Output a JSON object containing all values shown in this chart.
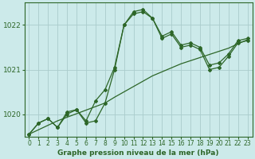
{
  "title": "Graphe pression niveau de la mer (hPa)",
  "background_color": "#cceaea",
  "grid_color": "#aacccc",
  "line_color": "#2d6628",
  "x": [
    0,
    1,
    2,
    3,
    4,
    5,
    6,
    7,
    8,
    9,
    10,
    11,
    12,
    13,
    14,
    15,
    16,
    17,
    18,
    19,
    20,
    21,
    22,
    23
  ],
  "y_line1": [
    1019.55,
    1019.8,
    1019.9,
    1019.7,
    1020.0,
    1020.1,
    1019.8,
    1019.85,
    1020.25,
    1021.0,
    1022.0,
    1022.25,
    1022.3,
    1022.15,
    1021.75,
    1021.85,
    1021.55,
    1021.6,
    1021.5,
    1021.1,
    1021.15,
    1021.35,
    1021.65,
    1021.7
  ],
  "y_line2": [
    1019.55,
    1019.8,
    1019.9,
    1019.7,
    1020.05,
    1020.1,
    1019.85,
    1020.3,
    1020.55,
    1021.05,
    1022.0,
    1022.3,
    1022.35,
    1022.15,
    1021.7,
    1021.8,
    1021.5,
    1021.55,
    1021.45,
    1021.0,
    1021.05,
    1021.3,
    1021.6,
    1021.65
  ],
  "y_trend": [
    1019.55,
    1019.65,
    1019.75,
    1019.85,
    1019.93,
    1020.01,
    1020.09,
    1020.17,
    1020.25,
    1020.38,
    1020.5,
    1020.62,
    1020.74,
    1020.86,
    1020.95,
    1021.04,
    1021.13,
    1021.2,
    1021.27,
    1021.34,
    1021.41,
    1021.48,
    1021.58,
    1021.67
  ],
  "ylim": [
    1019.5,
    1022.5
  ],
  "yticks": [
    1020,
    1021,
    1022
  ],
  "xlim": [
    -0.5,
    23.5
  ],
  "xticks": [
    0,
    1,
    2,
    3,
    4,
    5,
    6,
    7,
    8,
    9,
    10,
    11,
    12,
    13,
    14,
    15,
    16,
    17,
    18,
    19,
    20,
    21,
    22,
    23
  ],
  "line_width": 0.9,
  "marker": "D",
  "marker_size": 2.0,
  "figsize": [
    3.2,
    2.0
  ],
  "dpi": 100
}
